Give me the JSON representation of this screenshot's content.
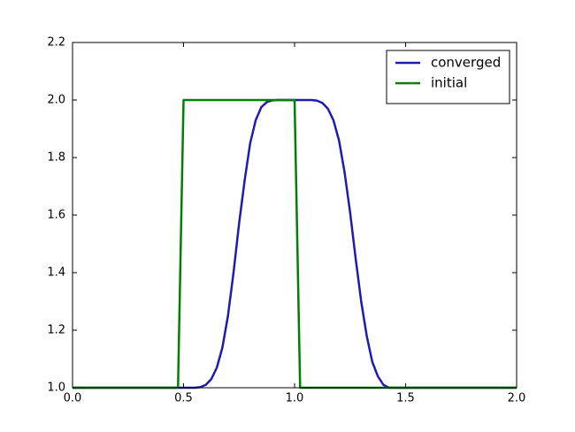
{
  "chart_data": {
    "type": "line",
    "series": [
      {
        "name": "converged",
        "color": "#1c1cb0",
        "x": [
          0,
          0.55,
          0.575,
          0.6,
          0.625,
          0.65,
          0.675,
          0.7,
          0.725,
          0.75,
          0.775,
          0.8,
          0.825,
          0.85,
          0.875,
          0.9,
          0.925,
          1.075,
          1.1,
          1.125,
          1.15,
          1.175,
          1.2,
          1.225,
          1.25,
          1.275,
          1.3,
          1.325,
          1.35,
          1.375,
          1.4,
          1.425,
          2
        ],
        "values": [
          1,
          1,
          1.002,
          1.01,
          1.03,
          1.07,
          1.14,
          1.25,
          1.4,
          1.57,
          1.72,
          1.85,
          1.93,
          1.975,
          1.993,
          1.999,
          2,
          2,
          1.998,
          1.99,
          1.97,
          1.93,
          1.86,
          1.75,
          1.61,
          1.45,
          1.3,
          1.18,
          1.09,
          1.04,
          1.01,
          1,
          1
        ]
      },
      {
        "name": "initial",
        "color": "#008000",
        "x": [
          0,
          0.475,
          0.5,
          1,
          1.025,
          2
        ],
        "values": [
          1,
          1,
          2,
          2,
          1,
          1
        ]
      }
    ],
    "xlim": [
      0,
      2
    ],
    "xticks": [
      {
        "value": 0,
        "label": "0.0"
      },
      0.5,
      {
        "value": 1,
        "label": "1.0"
      },
      1.5,
      {
        "value": 2,
        "label": "2.0"
      }
    ],
    "ylim": [
      1,
      2.2
    ],
    "yticks": [
      {
        "value": 1,
        "label": "1.0"
      },
      1.2,
      1.4,
      1.6,
      1.8,
      {
        "value": 2,
        "label": "2.0"
      },
      2.2
    ],
    "legend": "upper right",
    "grid": false
  }
}
